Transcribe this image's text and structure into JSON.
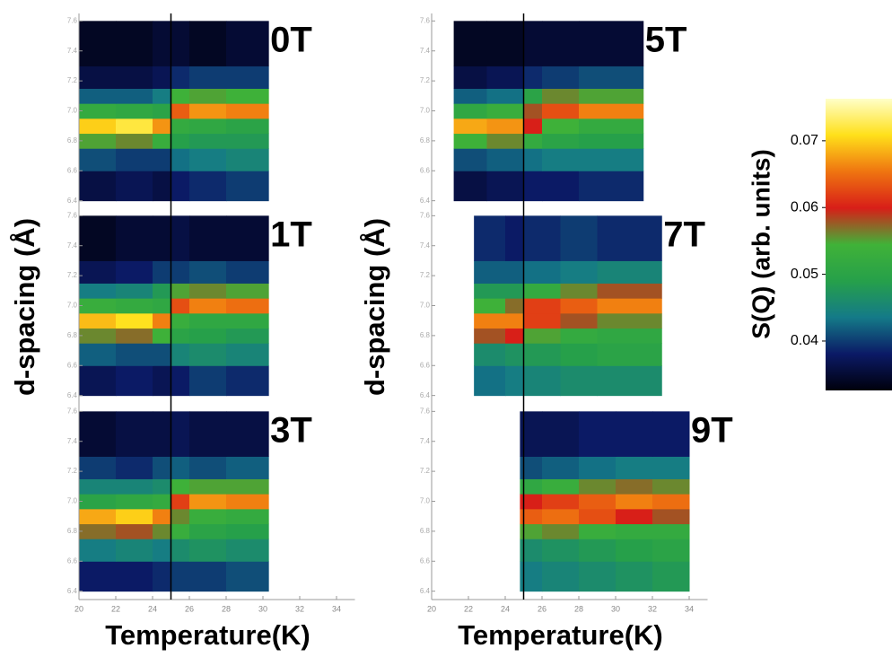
{
  "chart_data": {
    "type": "heatmap",
    "colorbar_label": "S(Q) (arb. units)",
    "zlim": [
      0.0326,
      0.0763
    ],
    "zticks": [
      0.04,
      0.05,
      0.06,
      0.07
    ],
    "colormap": [
      "#00000c",
      "#0b1a66",
      "#147a88",
      "#26a04a",
      "#40b238",
      "#d81e18",
      "#ef7410",
      "#ffe01a",
      "#ffffc8"
    ],
    "reference_temperature": 25,
    "xlim": [
      20,
      35
    ],
    "xticks": [
      20,
      22,
      24,
      26,
      28,
      30,
      32,
      34
    ],
    "ylim": [
      6.35,
      7.65
    ],
    "yticks": [
      6.4,
      6.6,
      6.8,
      {
        "value": 7,
        "label": "7.0"
      },
      7.2,
      7.4,
      7.6
    ],
    "d_edges": [
      6.4,
      6.6,
      6.75,
      6.85,
      6.95,
      7.05,
      7.15,
      7.3,
      7.6
    ],
    "columns": [
      {
        "xlabel": "Temperature(K)",
        "ylabel": "d-spacing (Å)",
        "panels": [
          {
            "label": "0T",
            "t_edges": [
              20,
              22,
              24,
              25,
              26,
              28,
              30.3
            ],
            "z": [
              [
                0.036,
                0.037,
                0.036,
                0.038,
                0.039,
                0.04
              ],
              [
                0.041,
                0.04,
                0.04,
                0.043,
                0.044,
                0.045
              ],
              [
                0.055,
                0.056,
                0.053,
                0.049,
                0.048,
                0.048
              ],
              [
                0.07,
                0.072,
                0.067,
                0.052,
                0.051,
                0.05
              ],
              [
                0.052,
                0.051,
                0.05,
                0.064,
                0.067,
                0.066
              ],
              [
                0.042,
                0.042,
                0.044,
                0.054,
                0.055,
                0.054
              ],
              [
                0.036,
                0.036,
                0.037,
                0.039,
                0.04,
                0.04
              ],
              [
                0.034,
                0.034,
                0.035,
                0.035,
                0.034,
                0.035
              ]
            ]
          },
          {
            "label": "1T",
            "t_edges": [
              20,
              22,
              24,
              25,
              26,
              28,
              30.3
            ],
            "z": [
              [
                0.037,
                0.038,
                0.037,
                0.038,
                0.04,
                0.039
              ],
              [
                0.042,
                0.041,
                0.041,
                0.045,
                0.046,
                0.045
              ],
              [
                0.056,
                0.057,
                0.054,
                0.05,
                0.049,
                0.048
              ],
              [
                0.069,
                0.071,
                0.066,
                0.053,
                0.051,
                0.051
              ],
              [
                0.053,
                0.052,
                0.051,
                0.063,
                0.066,
                0.065
              ],
              [
                0.044,
                0.045,
                0.048,
                0.055,
                0.056,
                0.055
              ],
              [
                0.037,
                0.038,
                0.04,
                0.04,
                0.041,
                0.04
              ],
              [
                0.034,
                0.035,
                0.035,
                0.036,
                0.035,
                0.035
              ]
            ]
          },
          {
            "label": "3T",
            "t_edges": [
              20,
              22,
              24,
              25,
              26,
              28,
              30.3
            ],
            "z": [
              [
                0.038,
                0.038,
                0.039,
                0.04,
                0.04,
                0.041
              ],
              [
                0.044,
                0.045,
                0.044,
                0.046,
                0.047,
                0.046
              ],
              [
                0.057,
                0.058,
                0.056,
                0.053,
                0.05,
                0.049
              ],
              [
                0.068,
                0.07,
                0.066,
                0.056,
                0.053,
                0.052
              ],
              [
                0.05,
                0.051,
                0.052,
                0.062,
                0.067,
                0.066
              ],
              [
                0.045,
                0.045,
                0.046,
                0.054,
                0.055,
                0.055
              ],
              [
                0.04,
                0.039,
                0.041,
                0.042,
                0.041,
                0.042
              ],
              [
                0.035,
                0.036,
                0.036,
                0.037,
                0.036,
                0.036
              ]
            ]
          }
        ]
      },
      {
        "xlabel": "Temperature(K)",
        "ylabel": "d-spacing (Å)",
        "panels": [
          {
            "label": "5T",
            "t_edges": [
              21.2,
              23,
              25,
              26,
              28,
              31.5
            ],
            "z": [
              [
                0.036,
                0.037,
                0.038,
                0.038,
                0.039
              ],
              [
                0.041,
                0.042,
                0.043,
                0.044,
                0.044
              ],
              [
                0.054,
                0.056,
                0.052,
                0.05,
                0.049
              ],
              [
                0.068,
                0.067,
                0.06,
                0.054,
                0.052
              ],
              [
                0.051,
                0.053,
                0.058,
                0.063,
                0.066
              ],
              [
                0.042,
                0.043,
                0.05,
                0.056,
                0.055
              ],
              [
                0.036,
                0.037,
                0.039,
                0.04,
                0.041
              ],
              [
                0.034,
                0.034,
                0.035,
                0.035,
                0.035
              ]
            ]
          },
          {
            "label": "7T",
            "t_edges": [
              22.3,
              24,
              25,
              27,
              29,
              32.5
            ],
            "z": [
              [
                0.043,
                0.044,
                0.045,
                0.046,
                0.046
              ],
              [
                0.046,
                0.047,
                0.048,
                0.049,
                0.05
              ],
              [
                0.058,
                0.06,
                0.055,
                0.052,
                0.051
              ],
              [
                0.066,
                0.066,
                0.062,
                0.058,
                0.056
              ],
              [
                0.054,
                0.057,
                0.062,
                0.064,
                0.066
              ],
              [
                0.048,
                0.048,
                0.052,
                0.056,
                0.058
              ],
              [
                0.042,
                0.042,
                0.043,
                0.044,
                0.045
              ],
              [
                0.039,
                0.038,
                0.039,
                0.04,
                0.039
              ]
            ]
          },
          {
            "label": "9T",
            "t_edges": [
              24.8,
              26,
              28,
              30,
              32,
              34
            ],
            "z": [
              [
                0.044,
                0.045,
                0.046,
                0.047,
                0.048
              ],
              [
                0.046,
                0.047,
                0.048,
                0.049,
                0.05
              ],
              [
                0.055,
                0.056,
                0.053,
                0.052,
                0.052
              ],
              [
                0.064,
                0.065,
                0.063,
                0.06,
                0.058
              ],
              [
                0.06,
                0.062,
                0.064,
                0.066,
                0.065
              ],
              [
                0.051,
                0.053,
                0.056,
                0.057,
                0.056
              ],
              [
                0.041,
                0.042,
                0.043,
                0.044,
                0.044
              ],
              [
                0.037,
                0.037,
                0.038,
                0.038,
                0.038
              ]
            ]
          }
        ]
      }
    ]
  }
}
